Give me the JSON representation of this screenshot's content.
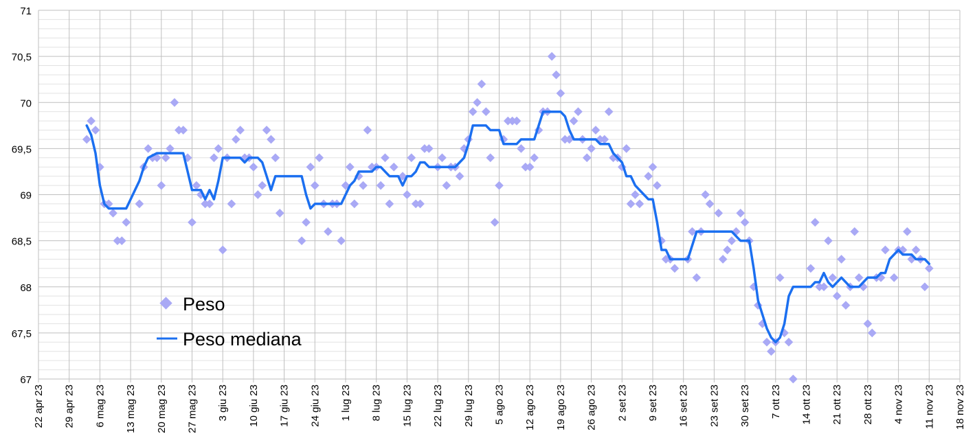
{
  "chart_data": {
    "type": "scatter",
    "title": "",
    "xlabel": "",
    "ylabel": "",
    "x_unit": "days since 22 apr 2023",
    "xlim": [
      0,
      210
    ],
    "ylim": [
      67,
      71
    ],
    "grid": true,
    "legend_placement": "bottom-left",
    "colors": {
      "points": "#a9a9f5",
      "line": "#1b6ff0",
      "grid_major": "#bfbfbf",
      "grid_minor": "#e2e2e2"
    },
    "y_ticks": [
      "67",
      "67,5",
      "68",
      "68,5",
      "69",
      "69,5",
      "70",
      "70,5",
      "71"
    ],
    "x_ticks": [
      "22 apr 23",
      "29 apr 23",
      "6 mag 23",
      "13 mag 23",
      "20 mag 23",
      "27 mag 23",
      "3 giu 23",
      "10 giu 23",
      "17 giu 23",
      "24 giu 23",
      "1 lug 23",
      "8 lug 23",
      "15 lug 23",
      "22 lug 23",
      "29 lug 23",
      "5 ago 23",
      "12 ago 23",
      "19 ago 23",
      "26 ago 23",
      "2 set 23",
      "9 set 23",
      "16 set 23",
      "23 set 23",
      "30 set 23",
      "7 ott 23",
      "14 ott 23",
      "21 ott 23",
      "28 ott 23",
      "4 nov 23",
      "11 nov 23",
      "18 nov 23"
    ],
    "series": [
      {
        "name": "Peso",
        "kind": "scatter",
        "points": [
          [
            11,
            69.6
          ],
          [
            12,
            69.8
          ],
          [
            13,
            69.7
          ],
          [
            14,
            69.3
          ],
          [
            15,
            68.9
          ],
          [
            16,
            68.9
          ],
          [
            17,
            68.8
          ],
          [
            18,
            68.5
          ],
          [
            19,
            68.5
          ],
          [
            20,
            68.7
          ],
          [
            23,
            68.9
          ],
          [
            24,
            69.3
          ],
          [
            25,
            69.5
          ],
          [
            26,
            69.4
          ],
          [
            27,
            69.4
          ],
          [
            28,
            69.1
          ],
          [
            29,
            69.4
          ],
          [
            30,
            69.5
          ],
          [
            31,
            70.0
          ],
          [
            32,
            69.7
          ],
          [
            33,
            69.7
          ],
          [
            34,
            69.4
          ],
          [
            35,
            68.7
          ],
          [
            36,
            69.1
          ],
          [
            37,
            69.0
          ],
          [
            38,
            68.9
          ],
          [
            39,
            68.9
          ],
          [
            40,
            69.4
          ],
          [
            41,
            69.5
          ],
          [
            42,
            68.4
          ],
          [
            43,
            69.4
          ],
          [
            44,
            68.9
          ],
          [
            45,
            69.6
          ],
          [
            46,
            69.7
          ],
          [
            47,
            69.4
          ],
          [
            48,
            69.4
          ],
          [
            49,
            69.3
          ],
          [
            50,
            69.0
          ],
          [
            51,
            69.1
          ],
          [
            52,
            69.7
          ],
          [
            53,
            69.6
          ],
          [
            54,
            69.4
          ],
          [
            55,
            68.8
          ],
          [
            60,
            68.5
          ],
          [
            61,
            68.7
          ],
          [
            62,
            69.3
          ],
          [
            63,
            69.1
          ],
          [
            64,
            69.4
          ],
          [
            65,
            68.9
          ],
          [
            66,
            68.6
          ],
          [
            67,
            68.9
          ],
          [
            68,
            68.9
          ],
          [
            69,
            68.5
          ],
          [
            70,
            69.1
          ],
          [
            71,
            69.3
          ],
          [
            72,
            68.9
          ],
          [
            73,
            69.2
          ],
          [
            74,
            69.1
          ],
          [
            75,
            69.7
          ],
          [
            76,
            69.3
          ],
          [
            77,
            69.3
          ],
          [
            78,
            69.1
          ],
          [
            79,
            69.4
          ],
          [
            80,
            68.9
          ],
          [
            81,
            69.3
          ],
          [
            83,
            69.2
          ],
          [
            84,
            69.0
          ],
          [
            85,
            69.4
          ],
          [
            86,
            68.9
          ],
          [
            87,
            68.9
          ],
          [
            88,
            69.5
          ],
          [
            89,
            69.5
          ],
          [
            91,
            69.3
          ],
          [
            92,
            69.4
          ],
          [
            93,
            69.1
          ],
          [
            94,
            69.3
          ],
          [
            95,
            69.3
          ],
          [
            96,
            69.2
          ],
          [
            97,
            69.5
          ],
          [
            98,
            69.6
          ],
          [
            99,
            69.9
          ],
          [
            100,
            70.0
          ],
          [
            101,
            70.2
          ],
          [
            102,
            69.9
          ],
          [
            103,
            69.4
          ],
          [
            104,
            68.7
          ],
          [
            105,
            69.1
          ],
          [
            106,
            69.6
          ],
          [
            107,
            69.8
          ],
          [
            108,
            69.8
          ],
          [
            109,
            69.8
          ],
          [
            110,
            69.5
          ],
          [
            111,
            69.3
          ],
          [
            112,
            69.3
          ],
          [
            113,
            69.4
          ],
          [
            114,
            69.7
          ],
          [
            115,
            69.9
          ],
          [
            116,
            69.9
          ],
          [
            117,
            70.5
          ],
          [
            118,
            70.3
          ],
          [
            119,
            70.1
          ],
          [
            120,
            69.6
          ],
          [
            121,
            69.6
          ],
          [
            122,
            69.8
          ],
          [
            123,
            69.9
          ],
          [
            124,
            69.6
          ],
          [
            125,
            69.4
          ],
          [
            126,
            69.5
          ],
          [
            127,
            69.7
          ],
          [
            128,
            69.6
          ],
          [
            129,
            69.6
          ],
          [
            130,
            69.9
          ],
          [
            131,
            69.4
          ],
          [
            132,
            69.4
          ],
          [
            133,
            69.3
          ],
          [
            134,
            69.5
          ],
          [
            135,
            68.9
          ],
          [
            136,
            69.0
          ],
          [
            137,
            68.9
          ],
          [
            139,
            69.2
          ],
          [
            140,
            69.3
          ],
          [
            141,
            69.1
          ],
          [
            142,
            68.5
          ],
          [
            143,
            68.3
          ],
          [
            144,
            68.3
          ],
          [
            145,
            68.2
          ],
          [
            148,
            68.3
          ],
          [
            149,
            68.6
          ],
          [
            150,
            68.1
          ],
          [
            151,
            68.6
          ],
          [
            152,
            69.0
          ],
          [
            153,
            68.9
          ],
          [
            155,
            68.8
          ],
          [
            156,
            68.3
          ],
          [
            157,
            68.4
          ],
          [
            158,
            68.5
          ],
          [
            159,
            68.6
          ],
          [
            160,
            68.8
          ],
          [
            161,
            68.7
          ],
          [
            162,
            68.5
          ],
          [
            163,
            68.0
          ],
          [
            164,
            67.8
          ],
          [
            165,
            67.6
          ],
          [
            166,
            67.4
          ],
          [
            167,
            67.3
          ],
          [
            168,
            67.4
          ],
          [
            169,
            68.1
          ],
          [
            170,
            67.5
          ],
          [
            171,
            67.4
          ],
          [
            172,
            67.0
          ],
          [
            176,
            68.2
          ],
          [
            177,
            68.7
          ],
          [
            178,
            68.0
          ],
          [
            179,
            68.0
          ],
          [
            180,
            68.5
          ],
          [
            181,
            68.1
          ],
          [
            182,
            67.9
          ],
          [
            183,
            68.3
          ],
          [
            184,
            67.8
          ],
          [
            185,
            68.0
          ],
          [
            186,
            68.6
          ],
          [
            187,
            68.1
          ],
          [
            188,
            68.0
          ],
          [
            189,
            67.6
          ],
          [
            190,
            67.5
          ],
          [
            191,
            68.1
          ],
          [
            192,
            68.1
          ],
          [
            193,
            68.4
          ],
          [
            195,
            68.1
          ],
          [
            196,
            68.4
          ],
          [
            197,
            68.4
          ],
          [
            198,
            68.6
          ],
          [
            199,
            68.3
          ],
          [
            200,
            68.4
          ],
          [
            201,
            68.3
          ],
          [
            202,
            68.0
          ],
          [
            203,
            68.2
          ]
        ]
      },
      {
        "name": "Peso mediana",
        "kind": "line",
        "points": [
          [
            11,
            69.75
          ],
          [
            12,
            69.65
          ],
          [
            13,
            69.45
          ],
          [
            14,
            69.1
          ],
          [
            15,
            68.9
          ],
          [
            16,
            68.85
          ],
          [
            20,
            68.85
          ],
          [
            21,
            68.95
          ],
          [
            22,
            69.05
          ],
          [
            23,
            69.15
          ],
          [
            24,
            69.3
          ],
          [
            25,
            69.4
          ],
          [
            27,
            69.45
          ],
          [
            33,
            69.45
          ],
          [
            34,
            69.25
          ],
          [
            35,
            69.05
          ],
          [
            37,
            69.05
          ],
          [
            38,
            68.95
          ],
          [
            39,
            69.05
          ],
          [
            40,
            68.95
          ],
          [
            41,
            69.15
          ],
          [
            42,
            69.4
          ],
          [
            46,
            69.4
          ],
          [
            47,
            69.35
          ],
          [
            48,
            69.4
          ],
          [
            50,
            69.4
          ],
          [
            51,
            69.35
          ],
          [
            52,
            69.2
          ],
          [
            53,
            69.05
          ],
          [
            54,
            69.2
          ],
          [
            60,
            69.2
          ],
          [
            61,
            69.0
          ],
          [
            62,
            68.85
          ],
          [
            63,
            68.9
          ],
          [
            69,
            68.9
          ],
          [
            70,
            69.0
          ],
          [
            71,
            69.1
          ],
          [
            72,
            69.15
          ],
          [
            73,
            69.25
          ],
          [
            76,
            69.25
          ],
          [
            77,
            69.3
          ],
          [
            78,
            69.3
          ],
          [
            79,
            69.25
          ],
          [
            80,
            69.2
          ],
          [
            82,
            69.2
          ],
          [
            83,
            69.1
          ],
          [
            84,
            69.2
          ],
          [
            85,
            69.2
          ],
          [
            86,
            69.25
          ],
          [
            87,
            69.35
          ],
          [
            88,
            69.35
          ],
          [
            89,
            69.3
          ],
          [
            95,
            69.3
          ],
          [
            96,
            69.35
          ],
          [
            97,
            69.4
          ],
          [
            98,
            69.55
          ],
          [
            99,
            69.75
          ],
          [
            102,
            69.75
          ],
          [
            103,
            69.7
          ],
          [
            105,
            69.7
          ],
          [
            106,
            69.55
          ],
          [
            109,
            69.55
          ],
          [
            110,
            69.6
          ],
          [
            113,
            69.6
          ],
          [
            114,
            69.75
          ],
          [
            115,
            69.9
          ],
          [
            119,
            69.9
          ],
          [
            120,
            69.85
          ],
          [
            121,
            69.7
          ],
          [
            122,
            69.6
          ],
          [
            127,
            69.6
          ],
          [
            128,
            69.55
          ],
          [
            130,
            69.55
          ],
          [
            131,
            69.45
          ],
          [
            132,
            69.4
          ],
          [
            133,
            69.35
          ],
          [
            134,
            69.2
          ],
          [
            135,
            69.2
          ],
          [
            136,
            69.1
          ],
          [
            138,
            69.0
          ],
          [
            139,
            68.95
          ],
          [
            140,
            68.95
          ],
          [
            141,
            68.7
          ],
          [
            142,
            68.4
          ],
          [
            143,
            68.4
          ],
          [
            144,
            68.3
          ],
          [
            148,
            68.3
          ],
          [
            149,
            68.45
          ],
          [
            150,
            68.6
          ],
          [
            158,
            68.6
          ],
          [
            159,
            68.55
          ],
          [
            160,
            68.5
          ],
          [
            162,
            68.5
          ],
          [
            163,
            68.2
          ],
          [
            164,
            67.85
          ],
          [
            165,
            67.7
          ],
          [
            166,
            67.55
          ],
          [
            167,
            67.45
          ],
          [
            168,
            67.4
          ],
          [
            169,
            67.45
          ],
          [
            170,
            67.6
          ],
          [
            171,
            67.9
          ],
          [
            172,
            68.0
          ],
          [
            176,
            68.0
          ],
          [
            177,
            68.05
          ],
          [
            178,
            68.05
          ],
          [
            179,
            68.15
          ],
          [
            180,
            68.05
          ],
          [
            181,
            68.0
          ],
          [
            183,
            68.1
          ],
          [
            185,
            68.0
          ],
          [
            187,
            68.0
          ],
          [
            188,
            68.05
          ],
          [
            189,
            68.1
          ],
          [
            191,
            68.1
          ],
          [
            192,
            68.15
          ],
          [
            193,
            68.15
          ],
          [
            194,
            68.3
          ],
          [
            196,
            68.4
          ],
          [
            197,
            68.35
          ],
          [
            199,
            68.35
          ],
          [
            200,
            68.3
          ],
          [
            202,
            68.3
          ],
          [
            203,
            68.25
          ]
        ]
      }
    ]
  }
}
